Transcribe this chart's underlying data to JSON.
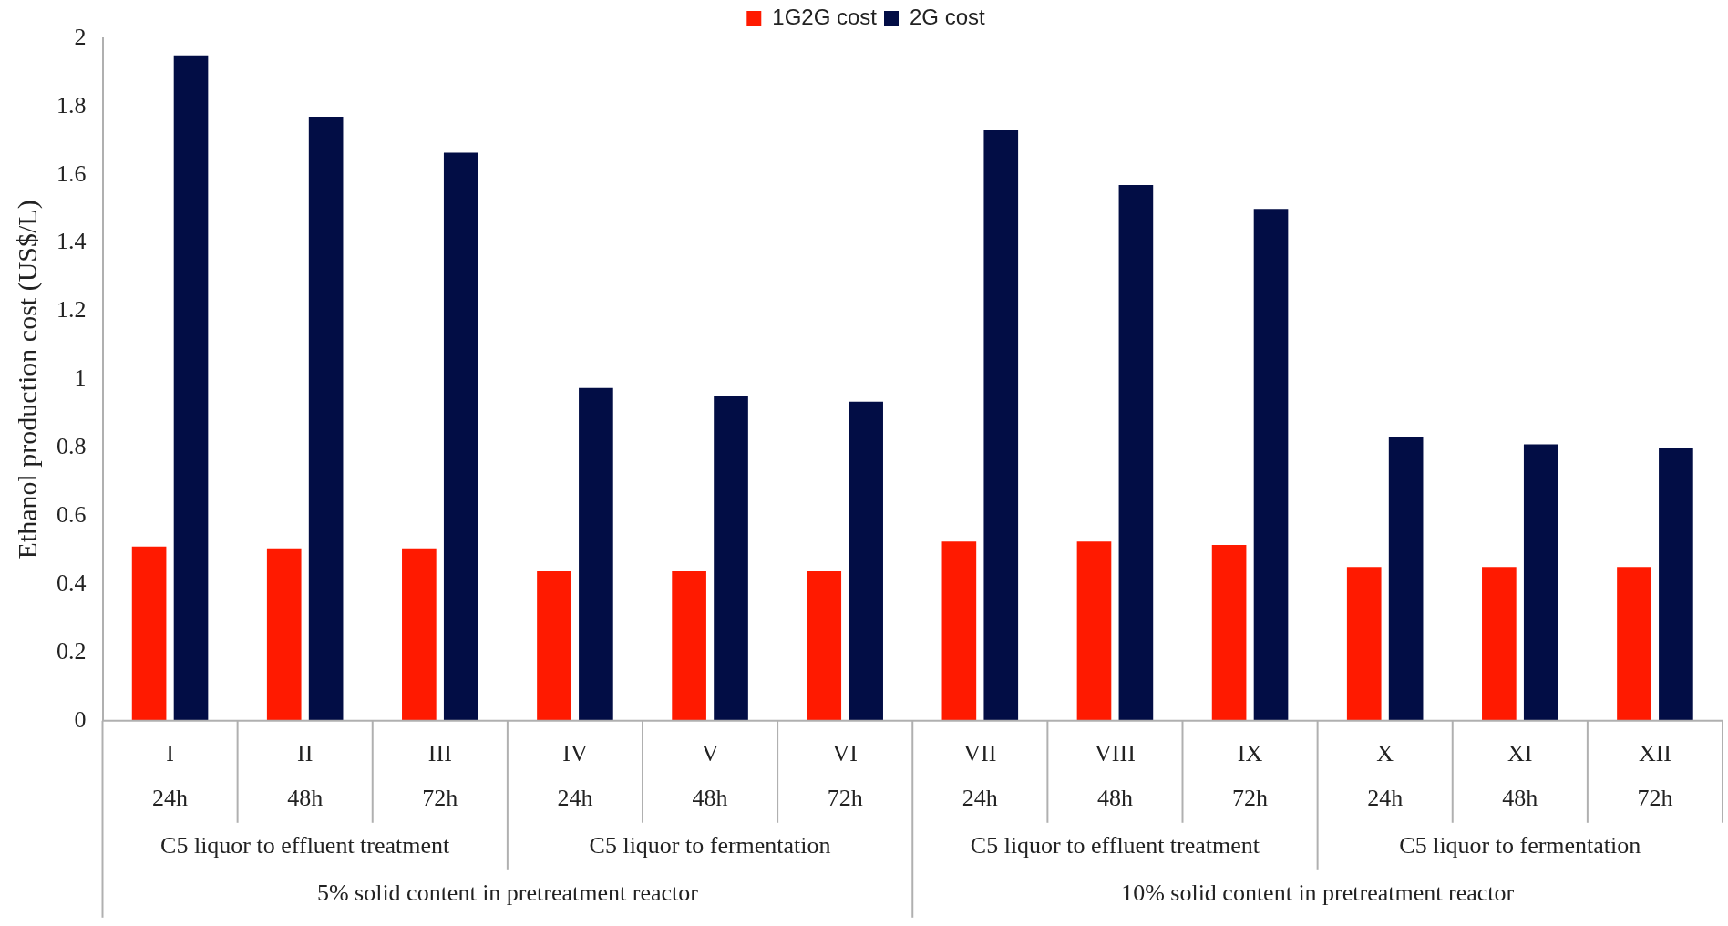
{
  "chart_data": {
    "type": "bar",
    "ylabel": "Ethanol production cost (US$/L)",
    "categories": [
      "I",
      "II",
      "III",
      "IV",
      "V",
      "VI",
      "VII",
      "VIII",
      "IX",
      "X",
      "XI",
      "XII"
    ],
    "series": [
      {
        "name": "1G2G cost",
        "color": "#ff1a00",
        "values": [
          0.51,
          0.505,
          0.505,
          0.44,
          0.44,
          0.44,
          0.525,
          0.525,
          0.515,
          0.45,
          0.45,
          0.45
        ]
      },
      {
        "name": "2G cost",
        "color": "#020d45",
        "values": [
          1.95,
          1.77,
          1.665,
          0.975,
          0.95,
          0.935,
          1.73,
          1.57,
          1.5,
          0.83,
          0.81,
          0.8
        ]
      }
    ],
    "ylim": [
      0,
      2
    ],
    "yticks": [
      0,
      0.2,
      0.4,
      0.6,
      0.8,
      1,
      1.2,
      1.4,
      1.6,
      1.8,
      2
    ],
    "grid": false,
    "legend": "top",
    "annotations": [
      "24h",
      "48h",
      "72h",
      "24h",
      "48h",
      "72h",
      "24h",
      "48h",
      "72h",
      "24h",
      "48h",
      "72h",
      "C5 liquor to effluent treatment",
      "C5 liquor to fermentation",
      "C5 liquor to effluent treatment",
      "C5 liquor to fermentation",
      "5% solid content in pretreatment reactor",
      "10% solid content in pretreatment reactor"
    ]
  }
}
